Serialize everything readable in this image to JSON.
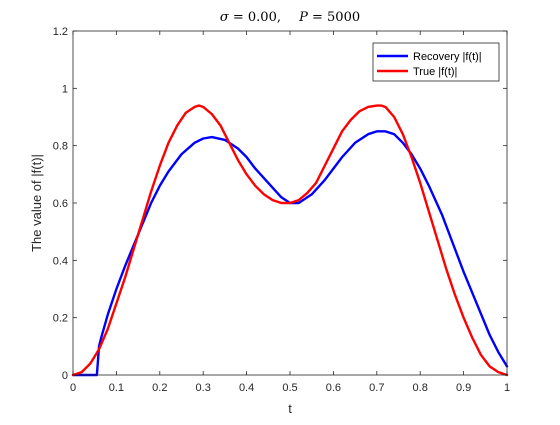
{
  "chart_data": {
    "type": "line",
    "title": {
      "sigma_symbol": "σ",
      "sigma_value": " = 0.00,",
      "p_symbol": "P",
      "p_value": " = 5000"
    },
    "xlabel": "t",
    "ylabel": "The value of |f(t)|",
    "xlim": [
      0,
      1
    ],
    "ylim": [
      0,
      1.2
    ],
    "xticks": [
      0,
      0.1,
      0.2,
      0.3,
      0.4,
      0.5,
      0.6,
      0.7,
      0.8,
      0.9,
      1
    ],
    "xtick_labels": [
      "0",
      "0.1",
      "0.2",
      "0.3",
      "0.4",
      "0.5",
      "0.6",
      "0.7",
      "0.8",
      "0.9",
      "1"
    ],
    "yticks": [
      0,
      0.2,
      0.4,
      0.6,
      0.8,
      1,
      1.2
    ],
    "ytick_labels": [
      "0",
      "0.2",
      "0.4",
      "0.6",
      "0.8",
      "1",
      "1.2"
    ],
    "grid": false,
    "legend_position": "top-right",
    "series": [
      {
        "name": "Recovery |f(t)|",
        "color": "#0000ff",
        "x": [
          0,
          0.055,
          0.06,
          0.065,
          0.08,
          0.1,
          0.12,
          0.15,
          0.18,
          0.2,
          0.22,
          0.25,
          0.28,
          0.3,
          0.32,
          0.35,
          0.38,
          0.4,
          0.42,
          0.45,
          0.48,
          0.5,
          0.52,
          0.55,
          0.58,
          0.6,
          0.62,
          0.65,
          0.68,
          0.7,
          0.72,
          0.74,
          0.76,
          0.78,
          0.8,
          0.82,
          0.85,
          0.88,
          0.9,
          0.93,
          0.96,
          0.98,
          1.0
        ],
        "y": [
          0,
          0,
          0.1,
          0.13,
          0.21,
          0.3,
          0.38,
          0.49,
          0.6,
          0.66,
          0.71,
          0.77,
          0.81,
          0.825,
          0.83,
          0.82,
          0.79,
          0.76,
          0.72,
          0.67,
          0.62,
          0.6,
          0.6,
          0.63,
          0.68,
          0.72,
          0.76,
          0.81,
          0.84,
          0.85,
          0.85,
          0.84,
          0.81,
          0.77,
          0.72,
          0.66,
          0.56,
          0.44,
          0.36,
          0.25,
          0.14,
          0.08,
          0.03
        ]
      },
      {
        "name": "True |f(t)|",
        "color": "#ff0000",
        "x": [
          0,
          0.02,
          0.04,
          0.06,
          0.08,
          0.1,
          0.12,
          0.14,
          0.16,
          0.18,
          0.2,
          0.22,
          0.24,
          0.26,
          0.28,
          0.29,
          0.3,
          0.32,
          0.34,
          0.36,
          0.38,
          0.4,
          0.42,
          0.44,
          0.46,
          0.48,
          0.5,
          0.52,
          0.54,
          0.56,
          0.58,
          0.6,
          0.62,
          0.64,
          0.66,
          0.68,
          0.7,
          0.71,
          0.72,
          0.74,
          0.76,
          0.78,
          0.8,
          0.82,
          0.84,
          0.86,
          0.88,
          0.9,
          0.92,
          0.94,
          0.96,
          0.98,
          1.0
        ],
        "y": [
          0,
          0.01,
          0.04,
          0.09,
          0.16,
          0.25,
          0.34,
          0.44,
          0.54,
          0.64,
          0.73,
          0.81,
          0.87,
          0.915,
          0.935,
          0.94,
          0.935,
          0.91,
          0.87,
          0.81,
          0.75,
          0.7,
          0.66,
          0.63,
          0.61,
          0.6,
          0.6,
          0.61,
          0.635,
          0.67,
          0.73,
          0.79,
          0.85,
          0.89,
          0.92,
          0.935,
          0.94,
          0.94,
          0.935,
          0.9,
          0.84,
          0.76,
          0.67,
          0.57,
          0.47,
          0.37,
          0.28,
          0.2,
          0.13,
          0.07,
          0.03,
          0.01,
          0
        ]
      }
    ]
  }
}
